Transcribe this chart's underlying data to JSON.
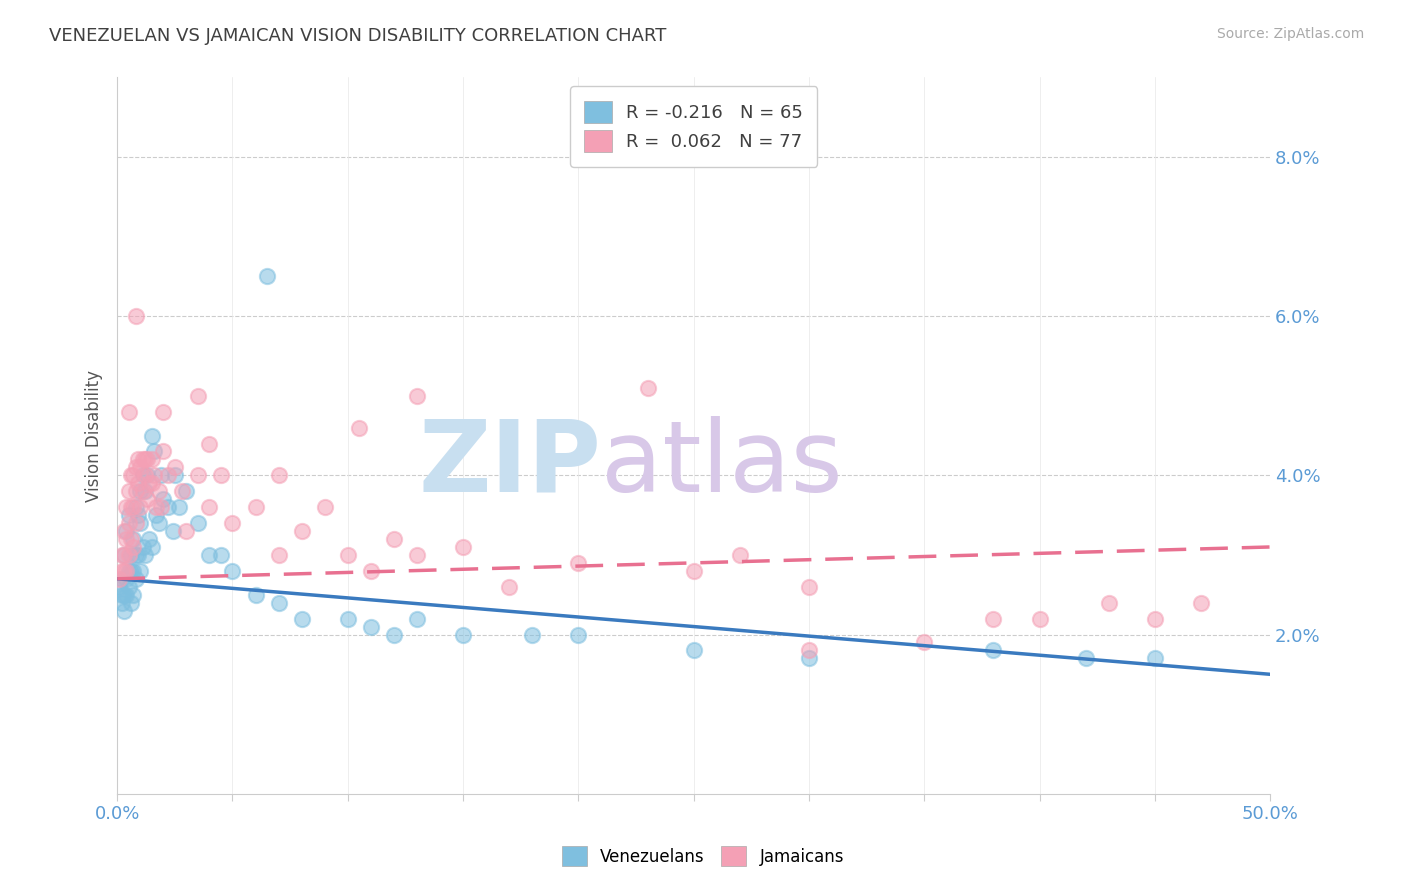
{
  "title": "VENEZUELAN VS JAMAICAN VISION DISABILITY CORRELATION CHART",
  "source": "Source: ZipAtlas.com",
  "ylabel": "Vision Disability",
  "xmin": 0.0,
  "xmax": 0.5,
  "ymin": 0.0,
  "ymax": 0.09,
  "yticks": [
    0.02,
    0.04,
    0.06,
    0.08
  ],
  "legend_venezuelans": "R = -0.216   N = 65",
  "legend_jamaicans": "R =  0.062   N = 77",
  "venezuelan_color": "#7fbfdf",
  "jamaican_color": "#f4a0b5",
  "venezuelan_line_color": "#3a7abf",
  "jamaican_line_color": "#e87090",
  "watermark": "ZIPatlas",
  "watermark_color_zip": "#c8dff0",
  "watermark_color_atlas": "#d8c8e8",
  "venezuelan_points": [
    [
      0.001,
      0.026
    ],
    [
      0.002,
      0.027
    ],
    [
      0.002,
      0.025
    ],
    [
      0.002,
      0.024
    ],
    [
      0.003,
      0.03
    ],
    [
      0.003,
      0.025
    ],
    [
      0.003,
      0.023
    ],
    [
      0.004,
      0.033
    ],
    [
      0.004,
      0.027
    ],
    [
      0.004,
      0.025
    ],
    [
      0.005,
      0.035
    ],
    [
      0.005,
      0.028
    ],
    [
      0.005,
      0.026
    ],
    [
      0.006,
      0.03
    ],
    [
      0.006,
      0.028
    ],
    [
      0.006,
      0.024
    ],
    [
      0.007,
      0.032
    ],
    [
      0.007,
      0.028
    ],
    [
      0.007,
      0.025
    ],
    [
      0.008,
      0.036
    ],
    [
      0.008,
      0.03
    ],
    [
      0.008,
      0.027
    ],
    [
      0.009,
      0.035
    ],
    [
      0.009,
      0.03
    ],
    [
      0.01,
      0.038
    ],
    [
      0.01,
      0.034
    ],
    [
      0.01,
      0.028
    ],
    [
      0.011,
      0.04
    ],
    [
      0.011,
      0.031
    ],
    [
      0.012,
      0.038
    ],
    [
      0.012,
      0.03
    ],
    [
      0.013,
      0.04
    ],
    [
      0.014,
      0.032
    ],
    [
      0.015,
      0.045
    ],
    [
      0.015,
      0.031
    ],
    [
      0.016,
      0.043
    ],
    [
      0.017,
      0.035
    ],
    [
      0.018,
      0.034
    ],
    [
      0.019,
      0.04
    ],
    [
      0.02,
      0.037
    ],
    [
      0.022,
      0.036
    ],
    [
      0.024,
      0.033
    ],
    [
      0.025,
      0.04
    ],
    [
      0.027,
      0.036
    ],
    [
      0.03,
      0.038
    ],
    [
      0.035,
      0.034
    ],
    [
      0.04,
      0.03
    ],
    [
      0.045,
      0.03
    ],
    [
      0.05,
      0.028
    ],
    [
      0.06,
      0.025
    ],
    [
      0.07,
      0.024
    ],
    [
      0.08,
      0.022
    ],
    [
      0.1,
      0.022
    ],
    [
      0.11,
      0.021
    ],
    [
      0.12,
      0.02
    ],
    [
      0.13,
      0.022
    ],
    [
      0.15,
      0.02
    ],
    [
      0.18,
      0.02
    ],
    [
      0.2,
      0.02
    ],
    [
      0.25,
      0.018
    ],
    [
      0.3,
      0.017
    ],
    [
      0.38,
      0.018
    ],
    [
      0.42,
      0.017
    ],
    [
      0.45,
      0.017
    ],
    [
      0.065,
      0.065
    ]
  ],
  "jamaican_points": [
    [
      0.001,
      0.027
    ],
    [
      0.002,
      0.028
    ],
    [
      0.002,
      0.03
    ],
    [
      0.003,
      0.028
    ],
    [
      0.003,
      0.033
    ],
    [
      0.003,
      0.03
    ],
    [
      0.004,
      0.036
    ],
    [
      0.004,
      0.032
    ],
    [
      0.004,
      0.028
    ],
    [
      0.005,
      0.038
    ],
    [
      0.005,
      0.034
    ],
    [
      0.005,
      0.03
    ],
    [
      0.006,
      0.04
    ],
    [
      0.006,
      0.036
    ],
    [
      0.006,
      0.032
    ],
    [
      0.007,
      0.04
    ],
    [
      0.007,
      0.036
    ],
    [
      0.007,
      0.031
    ],
    [
      0.008,
      0.041
    ],
    [
      0.008,
      0.038
    ],
    [
      0.008,
      0.034
    ],
    [
      0.009,
      0.042
    ],
    [
      0.009,
      0.039
    ],
    [
      0.01,
      0.041
    ],
    [
      0.01,
      0.036
    ],
    [
      0.011,
      0.042
    ],
    [
      0.011,
      0.038
    ],
    [
      0.012,
      0.042
    ],
    [
      0.012,
      0.04
    ],
    [
      0.013,
      0.042
    ],
    [
      0.013,
      0.037
    ],
    [
      0.014,
      0.039
    ],
    [
      0.015,
      0.042
    ],
    [
      0.015,
      0.039
    ],
    [
      0.016,
      0.04
    ],
    [
      0.017,
      0.036
    ],
    [
      0.018,
      0.038
    ],
    [
      0.019,
      0.036
    ],
    [
      0.02,
      0.043
    ],
    [
      0.022,
      0.04
    ],
    [
      0.025,
      0.041
    ],
    [
      0.028,
      0.038
    ],
    [
      0.03,
      0.033
    ],
    [
      0.035,
      0.04
    ],
    [
      0.04,
      0.036
    ],
    [
      0.045,
      0.04
    ],
    [
      0.05,
      0.034
    ],
    [
      0.06,
      0.036
    ],
    [
      0.07,
      0.03
    ],
    [
      0.08,
      0.033
    ],
    [
      0.09,
      0.036
    ],
    [
      0.1,
      0.03
    ],
    [
      0.11,
      0.028
    ],
    [
      0.12,
      0.032
    ],
    [
      0.13,
      0.03
    ],
    [
      0.15,
      0.031
    ],
    [
      0.17,
      0.026
    ],
    [
      0.2,
      0.029
    ],
    [
      0.23,
      0.051
    ],
    [
      0.25,
      0.028
    ],
    [
      0.27,
      0.03
    ],
    [
      0.3,
      0.026
    ],
    [
      0.35,
      0.019
    ],
    [
      0.38,
      0.022
    ],
    [
      0.4,
      0.022
    ],
    [
      0.43,
      0.024
    ],
    [
      0.45,
      0.022
    ],
    [
      0.47,
      0.024
    ],
    [
      0.13,
      0.05
    ],
    [
      0.105,
      0.046
    ],
    [
      0.008,
      0.06
    ],
    [
      0.005,
      0.048
    ],
    [
      0.02,
      0.048
    ],
    [
      0.035,
      0.05
    ],
    [
      0.04,
      0.044
    ],
    [
      0.07,
      0.04
    ],
    [
      0.3,
      0.018
    ]
  ]
}
